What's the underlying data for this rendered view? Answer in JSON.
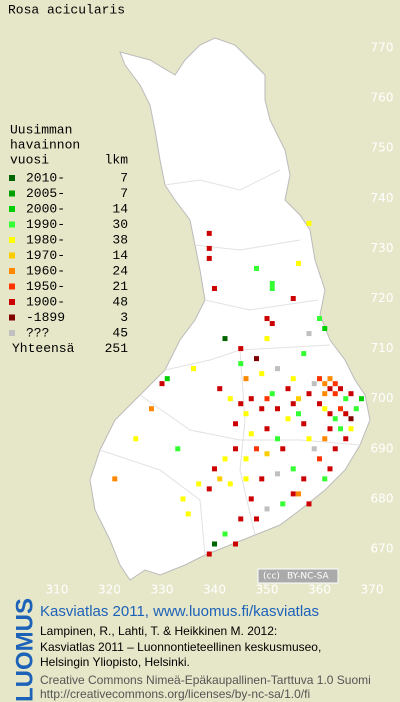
{
  "title": "Rosa acicularis",
  "legend": {
    "header": [
      "Uusimman",
      "havainnon",
      "vuosi"
    ],
    "count_header": "lkm",
    "entries": [
      {
        "label": "2010-",
        "count": 7,
        "color": "#006400"
      },
      {
        "label": "2005-",
        "count": 7,
        "color": "#00a000"
      },
      {
        "label": "2000-",
        "count": 14,
        "color": "#00d000"
      },
      {
        "label": "1990-",
        "count": 30,
        "color": "#33ff33"
      },
      {
        "label": "1980-",
        "count": 38,
        "color": "#ffff00"
      },
      {
        "label": "1970-",
        "count": 14,
        "color": "#ffcc00"
      },
      {
        "label": "1960-",
        "count": 24,
        "color": "#ff8800"
      },
      {
        "label": "1950-",
        "count": 21,
        "color": "#ff3300"
      },
      {
        "label": "1900-",
        "count": 48,
        "color": "#cc0000"
      },
      {
        "label": "-1899",
        "count": 3,
        "color": "#800000"
      },
      {
        "label": "???",
        "count": 45,
        "color": "#c0c0c0"
      }
    ],
    "total_label": "Yhteensä",
    "total": 251
  },
  "xticks": [
    310,
    320,
    330,
    340,
    350,
    360,
    370
  ],
  "yticks": [
    670,
    680,
    690,
    700,
    710,
    720,
    730,
    740,
    750,
    760,
    770
  ],
  "squares": [
    [
      339,
      733,
      8
    ],
    [
      339,
      730,
      8
    ],
    [
      339,
      728,
      8
    ],
    [
      348,
      726,
      3
    ],
    [
      351,
      723,
      3
    ],
    [
      356,
      727,
      4
    ],
    [
      358,
      735,
      4
    ],
    [
      340,
      722,
      8
    ],
    [
      355,
      720,
      8
    ],
    [
      351,
      722,
      3
    ],
    [
      342,
      712,
      0
    ],
    [
      350,
      716,
      8
    ],
    [
      351,
      715,
      8
    ],
    [
      350,
      712,
      4
    ],
    [
      360,
      716,
      3
    ],
    [
      358,
      713,
      10
    ],
    [
      357,
      709,
      3
    ],
    [
      361,
      714,
      2
    ],
    [
      345,
      710,
      8
    ],
    [
      345,
      707,
      3
    ],
    [
      348,
      708,
      9
    ],
    [
      346,
      704,
      6
    ],
    [
      349,
      705,
      4
    ],
    [
      352,
      706,
      10
    ],
    [
      355,
      704,
      4
    ],
    [
      354,
      702,
      8
    ],
    [
      356,
      700,
      5
    ],
    [
      358,
      701,
      8
    ],
    [
      359,
      703,
      10
    ],
    [
      360,
      704,
      7
    ],
    [
      361,
      703,
      6
    ],
    [
      362,
      704,
      6
    ],
    [
      363,
      703,
      7
    ],
    [
      362,
      702,
      8
    ],
    [
      361,
      701,
      6
    ],
    [
      363,
      701,
      7
    ],
    [
      364,
      702,
      8
    ],
    [
      365,
      700,
      3
    ],
    [
      366,
      701,
      8
    ],
    [
      360,
      699,
      8
    ],
    [
      361,
      698,
      4
    ],
    [
      362,
      697,
      8
    ],
    [
      363,
      696,
      3
    ],
    [
      364,
      698,
      7
    ],
    [
      365,
      697,
      8
    ],
    [
      366,
      696,
      9
    ],
    [
      367,
      698,
      3
    ],
    [
      368,
      700,
      2
    ],
    [
      362,
      694,
      8
    ],
    [
      364,
      694,
      3
    ],
    [
      365,
      692,
      8
    ],
    [
      366,
      694,
      4
    ],
    [
      361,
      692,
      6
    ],
    [
      363,
      690,
      8
    ],
    [
      360,
      688,
      7
    ],
    [
      362,
      686,
      8
    ],
    [
      361,
      684,
      3
    ],
    [
      359,
      690,
      10
    ],
    [
      358,
      692,
      4
    ],
    [
      357,
      695,
      8
    ],
    [
      356,
      697,
      3
    ],
    [
      355,
      699,
      8
    ],
    [
      354,
      696,
      4
    ],
    [
      352,
      698,
      8
    ],
    [
      350,
      700,
      7
    ],
    [
      351,
      701,
      3
    ],
    [
      349,
      698,
      8
    ],
    [
      347,
      700,
      8
    ],
    [
      346,
      697,
      4
    ],
    [
      345,
      699,
      8
    ],
    [
      343,
      700,
      4
    ],
    [
      341,
      702,
      8
    ],
    [
      344,
      695,
      8
    ],
    [
      347,
      693,
      4
    ],
    [
      350,
      694,
      8
    ],
    [
      352,
      692,
      3
    ],
    [
      353,
      690,
      8
    ],
    [
      350,
      689,
      5
    ],
    [
      348,
      690,
      7
    ],
    [
      346,
      688,
      4
    ],
    [
      344,
      690,
      8
    ],
    [
      342,
      688,
      4
    ],
    [
      340,
      686,
      8
    ],
    [
      341,
      684,
      5
    ],
    [
      339,
      682,
      8
    ],
    [
      343,
      683,
      4
    ],
    [
      346,
      684,
      4
    ],
    [
      349,
      684,
      8
    ],
    [
      352,
      685,
      10
    ],
    [
      355,
      686,
      3
    ],
    [
      357,
      684,
      8
    ],
    [
      355,
      681,
      8
    ],
    [
      353,
      679,
      3
    ],
    [
      350,
      678,
      10
    ],
    [
      348,
      676,
      8
    ],
    [
      345,
      676,
      8
    ],
    [
      342,
      673,
      3
    ],
    [
      340,
      671,
      0
    ],
    [
      339,
      669,
      8
    ],
    [
      347,
      680,
      8
    ],
    [
      336,
      706,
      4
    ],
    [
      330,
      703,
      8
    ],
    [
      328,
      698,
      6
    ],
    [
      325,
      692,
      4
    ],
    [
      333,
      690,
      3
    ],
    [
      321,
      684,
      6
    ],
    [
      337,
      683,
      4
    ],
    [
      334,
      680,
      4
    ],
    [
      335,
      677,
      4
    ],
    [
      331,
      704,
      2
    ],
    [
      356,
      681,
      6
    ],
    [
      358,
      679,
      8
    ],
    [
      344,
      671,
      8
    ]
  ],
  "badge": {
    "cc": "(cc)",
    "text": "BY-NC-SA"
  },
  "footer": {
    "logo": "LUOMUS",
    "headline": "Kasviatlas 2011, www.luomus.fi/kasviatlas",
    "citation": [
      "Lampinen, R., Lahti, T. & Heikkinen M. 2012:",
      "Kasviatlas 2011 – Luonnontieteellinen keskusmuseo,",
      "Helsingin Yliopisto, Helsinki."
    ],
    "license": [
      "Creative Commons Nimeä-Epäkaupallinen-Tarttuva 1.0 Suomi",
      "http://creativecommons.org/licenses/by-nc-sa/1.0/fi"
    ]
  }
}
